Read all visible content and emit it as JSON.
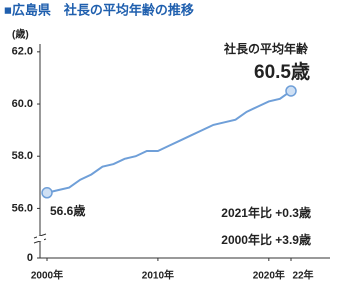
{
  "chart_data": {
    "type": "line",
    "title": "■広島県　社長の平均年齢の推移",
    "y_label": "(歳)",
    "x": [
      2000,
      2001,
      2002,
      2003,
      2004,
      2005,
      2006,
      2007,
      2008,
      2009,
      2010,
      2011,
      2012,
      2013,
      2014,
      2015,
      2016,
      2017,
      2018,
      2019,
      2020,
      2021,
      2022
    ],
    "series": [
      {
        "name": "社長の平均年齢",
        "color": "#6f9fd8",
        "values": [
          56.6,
          56.7,
          56.8,
          57.1,
          57.3,
          57.6,
          57.7,
          57.9,
          58.0,
          58.2,
          58.2,
          58.4,
          58.6,
          58.8,
          59.0,
          59.2,
          59.3,
          59.4,
          59.7,
          59.9,
          60.1,
          60.2,
          60.5
        ],
        "value_labels": [
          "56.6歳",
          null,
          null,
          null,
          null,
          null,
          null,
          null,
          null,
          null,
          null,
          null,
          null,
          null,
          null,
          null,
          null,
          null,
          null,
          null,
          null,
          null,
          "60.5歳"
        ]
      }
    ],
    "xlim": [
      2000,
      2022
    ],
    "xticks": [
      {
        "value": 2000,
        "label": "2000年"
      },
      {
        "value": 2010,
        "label": "2010年"
      },
      {
        "value": 2020,
        "label": "2020年"
      },
      {
        "value": 2022,
        "label": "22年"
      }
    ],
    "ylim": [
      54.1,
      62.3
    ],
    "yticks": [
      0,
      {
        "value": 56,
        "label": "56.0"
      },
      {
        "value": 58,
        "label": "58.0"
      },
      {
        "value": 60,
        "label": "60.0"
      },
      {
        "value": 62,
        "label": "62.0"
      }
    ],
    "annotations": [
      "2021年比 +0.3歳",
      "2000年比 +3.9歳"
    ]
  }
}
